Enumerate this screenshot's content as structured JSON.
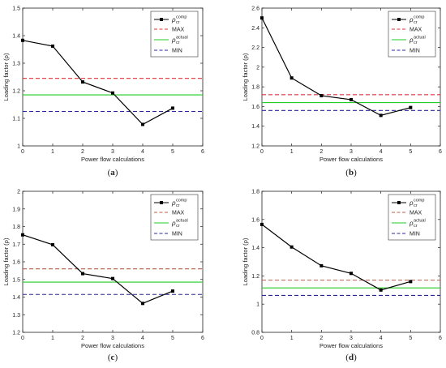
{
  "chart_data": [
    {
      "type": "line",
      "panel_label": "a",
      "xlabel": "Power flow calculations",
      "ylabel": "Loading factor (ρ)",
      "xlim": [
        0,
        6
      ],
      "ylim": [
        1,
        1.5
      ],
      "xticks": [
        "0",
        "1",
        "2",
        "3",
        "4",
        "5",
        "6"
      ],
      "yticks": [
        "1",
        "1.1",
        "1.2",
        "1.3",
        "1.4",
        "1.5"
      ],
      "x": [
        0,
        1,
        2,
        3,
        4,
        5
      ],
      "series": [
        {
          "name": "ρcr comp",
          "symbol": "ρ",
          "sup": "comp",
          "sub": "cr",
          "color": "#000000",
          "style": "solid-marker",
          "values": [
            1.383,
            1.362,
            1.232,
            1.192,
            1.078,
            1.137
          ]
        },
        {
          "name": "MAX",
          "color": "#e0303a",
          "style": "dashed",
          "value": 1.245
        },
        {
          "name": "ρcr actual",
          "symbol": "ρ",
          "sup": "actual",
          "sub": "cr",
          "color": "#22cc22",
          "style": "solid",
          "value": 1.185
        },
        {
          "name": "MIN",
          "color": "#2828a0",
          "style": "dashed",
          "value": 1.125
        }
      ]
    },
    {
      "type": "line",
      "panel_label": "b",
      "xlabel": "Power flow calculations",
      "ylabel": "Loading factor (ρ)",
      "xlim": [
        0,
        6
      ],
      "ylim": [
        1.2,
        2.6
      ],
      "xticks": [
        "0",
        "1",
        "2",
        "3",
        "4",
        "5",
        "6"
      ],
      "yticks": [
        "1.2",
        "1.4",
        "1.6",
        "1.8",
        "2",
        "2.2",
        "2.4",
        "2.6"
      ],
      "x": [
        0,
        1,
        2,
        3,
        4,
        5
      ],
      "series": [
        {
          "name": "ρcr comp",
          "symbol": "ρ",
          "sup": "comp",
          "sub": "cr",
          "color": "#000000",
          "style": "solid-marker",
          "values": [
            2.5,
            1.89,
            1.71,
            1.67,
            1.51,
            1.59
          ]
        },
        {
          "name": "MAX",
          "color": "#e0303a",
          "style": "dashed",
          "value": 1.72
        },
        {
          "name": "ρcr actual",
          "symbol": "ρ",
          "sup": "actual",
          "sub": "cr",
          "color": "#22cc22",
          "style": "solid",
          "value": 1.64
        },
        {
          "name": "MIN",
          "color": "#2828a0",
          "style": "dashed",
          "value": 1.56
        }
      ]
    },
    {
      "type": "line",
      "panel_label": "c",
      "xlabel": "Power flow calculations",
      "ylabel": "Loading factor (ρ)",
      "xlim": [
        0,
        6
      ],
      "ylim": [
        1.2,
        2
      ],
      "xticks": [
        "0",
        "1",
        "2",
        "3",
        "4",
        "5",
        "6"
      ],
      "yticks": [
        "1.2",
        "1.3",
        "1.4",
        "1.5",
        "1.6",
        "1.7",
        "1.8",
        "1.9",
        "2"
      ],
      "x": [
        0,
        1,
        2,
        3,
        4,
        5
      ],
      "series": [
        {
          "name": "ρcr comp",
          "symbol": "ρ",
          "sup": "comp",
          "sub": "cr",
          "color": "#000000",
          "style": "solid-marker",
          "values": [
            1.753,
            1.697,
            1.533,
            1.505,
            1.364,
            1.434
          ]
        },
        {
          "name": "MAX",
          "color": "#b85c48",
          "style": "dashed",
          "value": 1.56
        },
        {
          "name": "ρcr actual",
          "symbol": "ρ",
          "sup": "actual",
          "sub": "cr",
          "color": "#22cc22",
          "style": "solid",
          "value": 1.485
        },
        {
          "name": "MIN",
          "color": "#2828a0",
          "style": "dashed",
          "value": 1.415
        }
      ]
    },
    {
      "type": "line",
      "panel_label": "d",
      "xlabel": "Power flow calculations",
      "ylabel": "Loading factor (ρ)",
      "xlim": [
        0,
        6
      ],
      "ylim": [
        0.8,
        1.8
      ],
      "xticks": [
        "0",
        "1",
        "2",
        "3",
        "4",
        "5",
        "6"
      ],
      "yticks": [
        "0.8",
        "1",
        "1.2",
        "1.4",
        "1.6",
        "1.8"
      ],
      "x": [
        0,
        1,
        2,
        3,
        4,
        5
      ],
      "series": [
        {
          "name": "ρcr comp",
          "symbol": "ρ",
          "sup": "comp",
          "sub": "cr",
          "color": "#000000",
          "style": "solid-marker",
          "values": [
            1.565,
            1.405,
            1.272,
            1.218,
            1.1,
            1.16
          ]
        },
        {
          "name": "MAX",
          "color": "#b85c48",
          "style": "dashed",
          "value": 1.17
        },
        {
          "name": "ρcr actual",
          "symbol": "ρ",
          "sup": "actual",
          "sub": "cr",
          "color": "#22cc22",
          "style": "solid",
          "value": 1.115
        },
        {
          "name": "MIN",
          "color": "#2828a0",
          "style": "dashed",
          "value": 1.062
        }
      ]
    }
  ]
}
